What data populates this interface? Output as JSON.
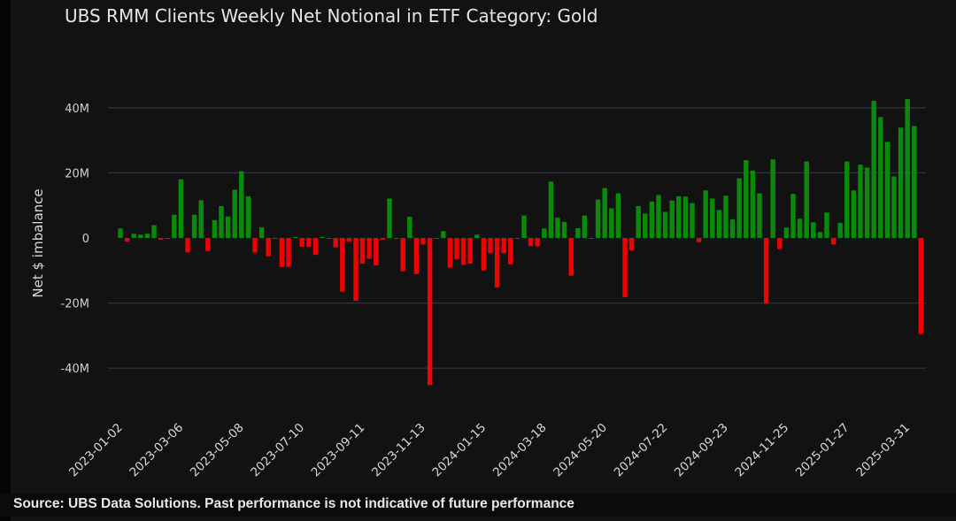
{
  "chart_data": {
    "type": "bar",
    "title": "UBS RMM Clients Weekly Net Notional in ETF Category: Gold",
    "xlabel": "",
    "ylabel": "Net $ imbalance",
    "ylim": [
      -48,
      48
    ],
    "y_unit": "M",
    "yticks": [
      {
        "value": 40,
        "label": "40M"
      },
      {
        "value": 20,
        "label": "20M"
      },
      {
        "value": 0,
        "label": "0"
      },
      {
        "value": -20,
        "label": "-20M"
      },
      {
        "value": -40,
        "label": "-40M"
      }
    ],
    "start_date": "2023-01-02",
    "frequency": "weekly",
    "xticks": [
      {
        "index": 0,
        "label": "2023-01-02"
      },
      {
        "index": 9,
        "label": "2023-03-06"
      },
      {
        "index": 18,
        "label": "2023-05-08"
      },
      {
        "index": 27,
        "label": "2023-07-10"
      },
      {
        "index": 36,
        "label": "2023-09-11"
      },
      {
        "index": 45,
        "label": "2023-11-13"
      },
      {
        "index": 54,
        "label": "2024-01-15"
      },
      {
        "index": 63,
        "label": "2024-03-18"
      },
      {
        "index": 72,
        "label": "2024-05-20"
      },
      {
        "index": 81,
        "label": "2024-07-22"
      },
      {
        "index": 90,
        "label": "2024-09-23"
      },
      {
        "index": 99,
        "label": "2024-11-25"
      },
      {
        "index": 108,
        "label": "2025-01-27"
      },
      {
        "index": 117,
        "label": "2025-03-31"
      }
    ],
    "values": [
      2.9,
      -1.1,
      1.3,
      1.0,
      1.3,
      3.9,
      -0.5,
      -0.3,
      7.1,
      18.0,
      -4.4,
      7.1,
      11.6,
      -4.0,
      5.5,
      9.8,
      6.6,
      14.8,
      20.5,
      12.8,
      -4.5,
      3.3,
      -5.6,
      -0.3,
      -8.9,
      -8.9,
      0.2,
      -2.7,
      -2.7,
      -5.2,
      0.3,
      -0.2,
      -2.9,
      -16.5,
      -1.1,
      -19.3,
      -7.9,
      -6.4,
      -8.4,
      -0.5,
      12.1,
      -0.3,
      -10.2,
      6.5,
      -11.1,
      -2.0,
      -45.2,
      -0.2,
      2.1,
      -9.1,
      -6.5,
      -8.2,
      -7.9,
      1.0,
      -10.0,
      -4.7,
      -15.2,
      -4.7,
      -8.1,
      -0.2,
      6.9,
      -2.5,
      -2.6,
      2.9,
      17.3,
      6.2,
      4.9,
      -11.6,
      3.0,
      6.9,
      -0.2,
      11.8,
      15.3,
      9.1,
      13.7,
      -18.2,
      -3.8,
      9.8,
      7.5,
      11.2,
      13.2,
      8.0,
      11.5,
      12.8,
      12.7,
      10.7,
      -1.3,
      14.6,
      12.1,
      8.6,
      13.0,
      5.7,
      18.3,
      23.9,
      20.7,
      13.7,
      -20.2,
      24.1,
      -3.4,
      3.2,
      13.5,
      5.9,
      23.5,
      4.8,
      1.8,
      7.8,
      -2.0,
      4.6,
      23.5,
      14.6,
      22.5,
      21.6,
      42.1,
      37.1,
      29.5,
      18.9,
      33.9,
      42.7,
      34.4,
      -29.5
    ],
    "colors": {
      "positive": "#0a8a0a",
      "negative": "#f00000",
      "grid": "#2e3340",
      "background": "#121212"
    },
    "grid": true,
    "legend": "none"
  },
  "footer": {
    "source": "Source: UBS Data Solutions. Past performance is not indicative of future performance"
  }
}
